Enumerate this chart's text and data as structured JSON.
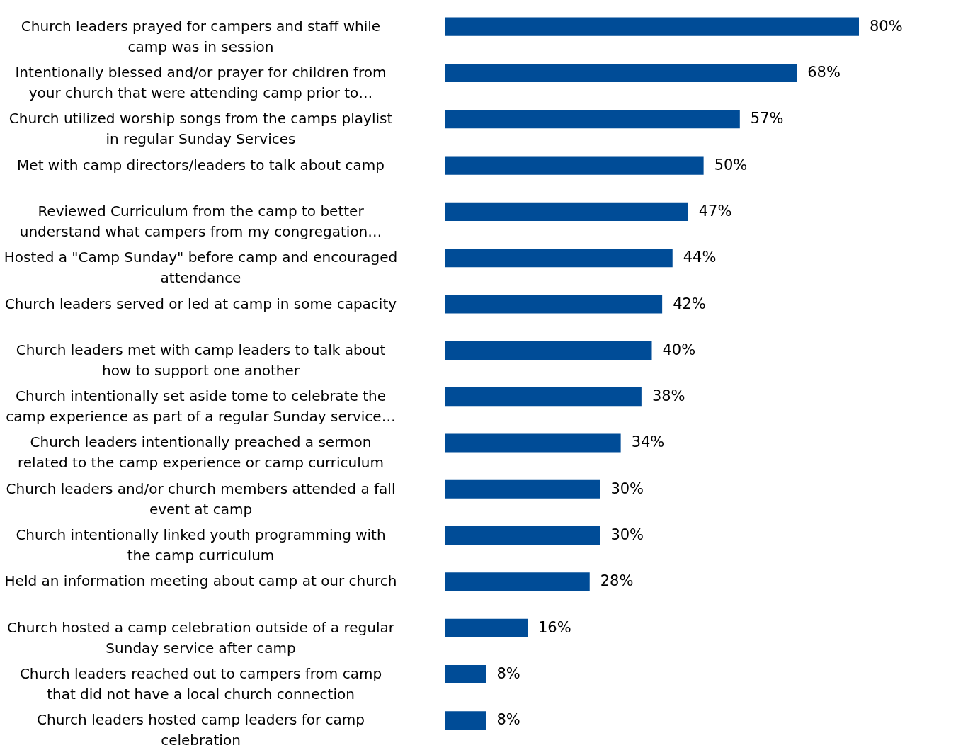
{
  "chart_data": {
    "type": "bar",
    "orientation": "horizontal",
    "grid": false,
    "tick_labels": "y",
    "categories": [
      "Church leaders prayed for campers and staff while\ncamp was in session",
      "Intentionally blessed and/or prayer for children from\nyour church that were attending camp prior to…",
      "Church utilized worship songs from the camps playlist\nin regular Sunday Services",
      "Met with camp directors/leaders to talk about camp",
      "Reviewed Curriculum from the camp to better\nunderstand what campers from my congregation…",
      "Hosted a \"Camp Sunday\" before camp and encouraged\nattendance",
      "Church leaders served or led at camp in some capacity",
      "Church leaders met with camp leaders to talk about\nhow to support one another",
      "Church intentionally set aside tome to celebrate the\ncamp experience as part of a regular Sunday service…",
      "Church leaders intentionally preached a sermon\nrelated to the camp experience or camp curriculum",
      "Church leaders and/or church members attended a fall\nevent at camp",
      "Church intentionally linked youth programming with\nthe camp curriculum",
      "Held an information meeting about camp at our church",
      "Church hosted a camp celebration outside of a regular\nSunday service after camp",
      "Church leaders reached out to campers from camp\nthat did not have a local church connection",
      "Church leaders hosted camp leaders for camp\ncelebration"
    ],
    "values": [
      80,
      68,
      57,
      50,
      47,
      44,
      42,
      40,
      38,
      34,
      30,
      30,
      28,
      16,
      8,
      8
    ],
    "value_labels": [
      "80%",
      "68%",
      "57%",
      "50%",
      "47%",
      "44%",
      "42%",
      "40%",
      "38%",
      "34%",
      "30%",
      "30%",
      "28%",
      "16%",
      "8%",
      "8%"
    ],
    "color": "#004c97"
  }
}
